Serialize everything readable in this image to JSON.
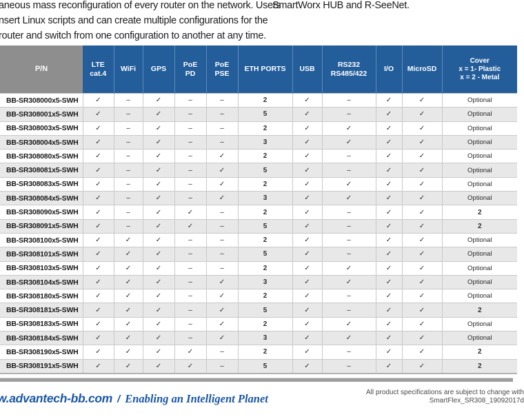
{
  "colors": {
    "header_blue": "#235e9b",
    "pn_gray": "#8e8e8e",
    "row_alt": "#e8e8e8",
    "footer_blue": "#1b57a5"
  },
  "intro": {
    "left_lines": [
      "aneous mass reconfiguration of every router on the network. Users",
      "nsert Linux scripts and can create multiple configurations for the",
      "router and switch from one configuration to another at any time."
    ],
    "right_line": "SmartWorx HUB and R-SeeNet."
  },
  "table": {
    "columns": [
      [
        "P/N"
      ],
      [
        "LTE",
        "cat.4"
      ],
      [
        "WiFi"
      ],
      [
        "GPS"
      ],
      [
        "PoE",
        "PD"
      ],
      [
        "PoE",
        "PSE"
      ],
      [
        "ETH PORTS"
      ],
      [
        "USB"
      ],
      [
        "RS232",
        "RS485/422"
      ],
      [
        "I/O"
      ],
      [
        "MicroSD"
      ],
      [
        "Cover",
        "x = 1- Plastic",
        "x = 2 - Metal"
      ]
    ],
    "rows": [
      [
        "BB-SR308000x5-SWH",
        "✓",
        "–",
        "✓",
        "–",
        "–",
        "2",
        "✓",
        "–",
        "✓",
        "✓",
        "Optional"
      ],
      [
        "BB-SR308001x5-SWH",
        "✓",
        "–",
        "✓",
        "–",
        "–",
        "5",
        "✓",
        "–",
        "✓",
        "✓",
        "Optional"
      ],
      [
        "BB-SR308003x5-SWH",
        "✓",
        "–",
        "✓",
        "–",
        "–",
        "2",
        "✓",
        "✓",
        "✓",
        "✓",
        "Optional"
      ],
      [
        "BB-SR308004x5-SWH",
        "✓",
        "–",
        "✓",
        "–",
        "–",
        "3",
        "✓",
        "✓",
        "✓",
        "✓",
        "Optional"
      ],
      [
        "BB-SR308080x5-SWH",
        "✓",
        "–",
        "✓",
        "–",
        "✓",
        "2",
        "✓",
        "–",
        "✓",
        "✓",
        "Optional"
      ],
      [
        "BB-SR308081x5-SWH",
        "✓",
        "–",
        "✓",
        "–",
        "✓",
        "5",
        "✓",
        "–",
        "✓",
        "✓",
        "Optional"
      ],
      [
        "BB-SR308083x5-SWH",
        "✓",
        "–",
        "✓",
        "–",
        "✓",
        "2",
        "✓",
        "✓",
        "✓",
        "✓",
        "Optional"
      ],
      [
        "BB-SR308084x5-SWH",
        "✓",
        "–",
        "✓",
        "–",
        "✓",
        "3",
        "✓",
        "✓",
        "✓",
        "✓",
        "Optional"
      ],
      [
        "BB-SR308090x5-SWH",
        "✓",
        "–",
        "✓",
        "✓",
        "–",
        "2",
        "✓",
        "–",
        "✓",
        "✓",
        "2"
      ],
      [
        "BB-SR308091x5-SWH",
        "✓",
        "–",
        "✓",
        "✓",
        "–",
        "5",
        "✓",
        "–",
        "✓",
        "✓",
        "2"
      ],
      [
        "BB-SR308100x5-SWH",
        "✓",
        "✓",
        "✓",
        "–",
        "–",
        "2",
        "✓",
        "–",
        "✓",
        "✓",
        "Optional"
      ],
      [
        "BB-SR308101x5-SWH",
        "✓",
        "✓",
        "✓",
        "–",
        "–",
        "5",
        "✓",
        "–",
        "✓",
        "✓",
        "Optional"
      ],
      [
        "BB-SR308103x5-SWH",
        "✓",
        "✓",
        "✓",
        "–",
        "–",
        "2",
        "✓",
        "✓",
        "✓",
        "✓",
        "Optional"
      ],
      [
        "BB-SR308104x5-SWH",
        "✓",
        "✓",
        "✓",
        "–",
        "✓",
        "3",
        "✓",
        "✓",
        "✓",
        "✓",
        "Optional"
      ],
      [
        "BB-SR308180x5-SWH",
        "✓",
        "✓",
        "✓",
        "–",
        "✓",
        "2",
        "✓",
        "–",
        "✓",
        "✓",
        "Optional"
      ],
      [
        "BB-SR308181x5-SWH",
        "✓",
        "✓",
        "✓",
        "–",
        "✓",
        "5",
        "✓",
        "–",
        "✓",
        "✓",
        "2"
      ],
      [
        "BB-SR308183x5-SWH",
        "✓",
        "✓",
        "✓",
        "–",
        "✓",
        "2",
        "✓",
        "✓",
        "✓",
        "✓",
        "Optional"
      ],
      [
        "BB-SR308184x5-SWH",
        "✓",
        "✓",
        "✓",
        "–",
        "✓",
        "3",
        "✓",
        "✓",
        "✓",
        "✓",
        "Optional"
      ],
      [
        "BB-SR308190x5-SWH",
        "✓",
        "✓",
        "✓",
        "✓",
        "–",
        "2",
        "✓",
        "–",
        "✓",
        "✓",
        "2"
      ],
      [
        "BB-SR308191x5-SWH",
        "✓",
        "✓",
        "✓",
        "✓",
        "–",
        "5",
        "✓",
        "–",
        "✓",
        "✓",
        "2"
      ]
    ]
  },
  "footer": {
    "url": "w.advantech-bb.com",
    "separator": "/",
    "slogan": "Enabling an Intelligent Planet",
    "disclaimer_line1": "All product specifications are subject to change with",
    "doc_ref": "SmartFlex_SR308_19092017d"
  }
}
